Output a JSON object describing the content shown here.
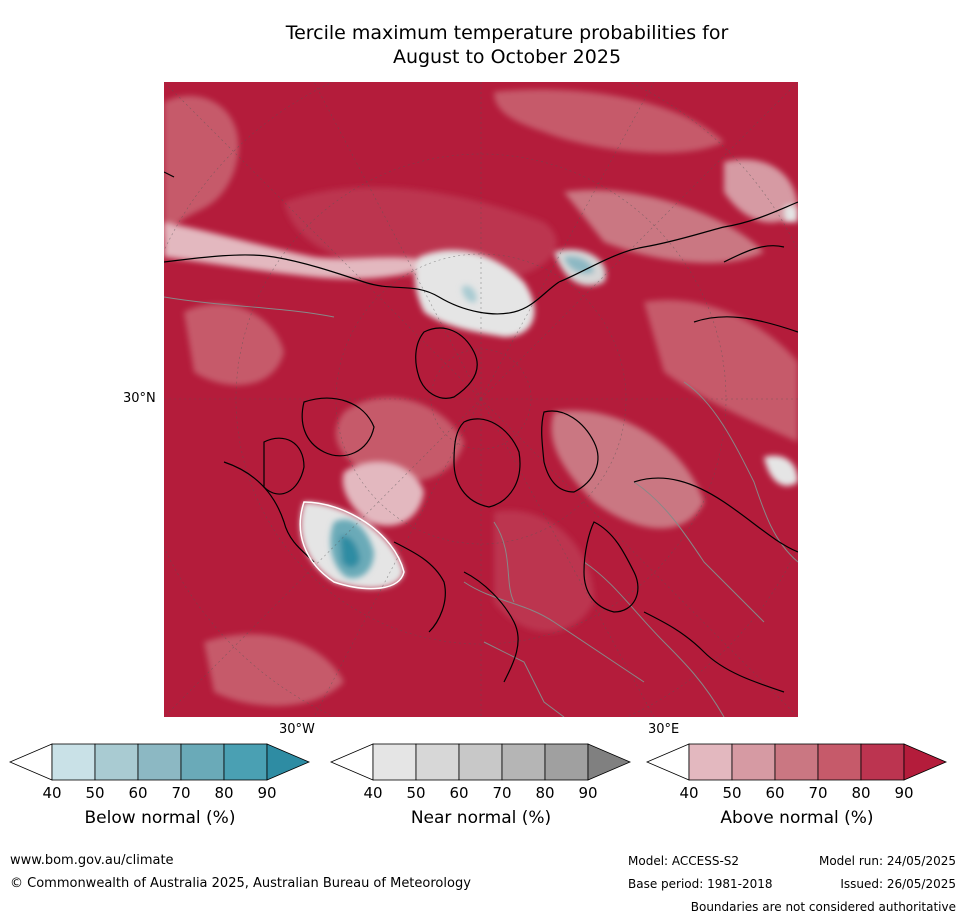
{
  "title_line1": "Tercile maximum temperature probabilities for",
  "title_line2": "August to October 2025",
  "map_labels": {
    "lat_30n": "30°N",
    "lon_30w": "30°W",
    "lon_30e": "30°E"
  },
  "colorbars": [
    {
      "label": "Below normal (%)",
      "ticks": [
        "40",
        "50",
        "60",
        "70",
        "80",
        "90"
      ],
      "colors": [
        "#ffffff",
        "#c9e1e7",
        "#a9cbd2",
        "#8cb8c3",
        "#6aaab8",
        "#4aa0b3",
        "#2e8ca3"
      ]
    },
    {
      "label": "Near normal (%)",
      "ticks": [
        "40",
        "50",
        "60",
        "70",
        "80",
        "90"
      ],
      "colors": [
        "#ffffff",
        "#e5e5e5",
        "#d7d7d7",
        "#c8c8c8",
        "#b5b5b5",
        "#a0a0a0",
        "#808080"
      ]
    },
    {
      "label": "Above normal (%)",
      "ticks": [
        "40",
        "50",
        "60",
        "70",
        "80",
        "90"
      ],
      "colors": [
        "#ffffff",
        "#e3b8bf",
        "#d69aa3",
        "#ca7782",
        "#c65a6a",
        "#bc3450",
        "#b41c3b"
      ]
    }
  ],
  "footer": {
    "url": "www.bom.gov.au/climate",
    "copyright": "© Commonwealth of Australia 2025, Australian Bureau of Meteorology",
    "model": "Model: ACCESS-S2",
    "base_period": "Base period: 1981-2018",
    "model_run": "Model run: 24/05/2025",
    "issued": "Issued: 26/05/2025",
    "boundaries": "Boundaries are not considered authoritative"
  }
}
